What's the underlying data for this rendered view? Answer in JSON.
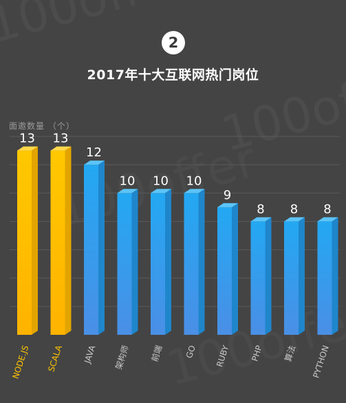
{
  "header": {
    "badge": "2",
    "title": "2017年十大互联网热门岗位"
  },
  "chart_data": {
    "type": "bar",
    "title": "2017年十大互联网热门岗位",
    "ylabel": "面邀数量 （个）",
    "xlabel": "",
    "categories": [
      "NODE.JS",
      "SCALA",
      "JAVA",
      "架构师",
      "前端",
      "GO",
      "RUBY",
      "PHP",
      "算法",
      "PYTHON"
    ],
    "values": [
      13,
      13,
      12,
      10,
      10,
      10,
      9,
      8,
      8,
      8
    ],
    "highlight": [
      "NODE.JS",
      "SCALA"
    ],
    "ylim": [
      0,
      14
    ],
    "grid": true,
    "colors": {
      "highlight_front": "#ffc400",
      "highlight_side": "#e2a400",
      "highlight_top": "#ffd84a",
      "normal_front": "#29a9f0",
      "normal_side": "#1f86cc",
      "normal_top": "#5cc4f7",
      "highlight_label": "#ffc400",
      "normal_label": "#c9c9c9",
      "value_label": "#ffffff",
      "gridline": "#5a5a5a",
      "background": "#444444"
    }
  },
  "watermark": {
    "text": "100offer"
  }
}
